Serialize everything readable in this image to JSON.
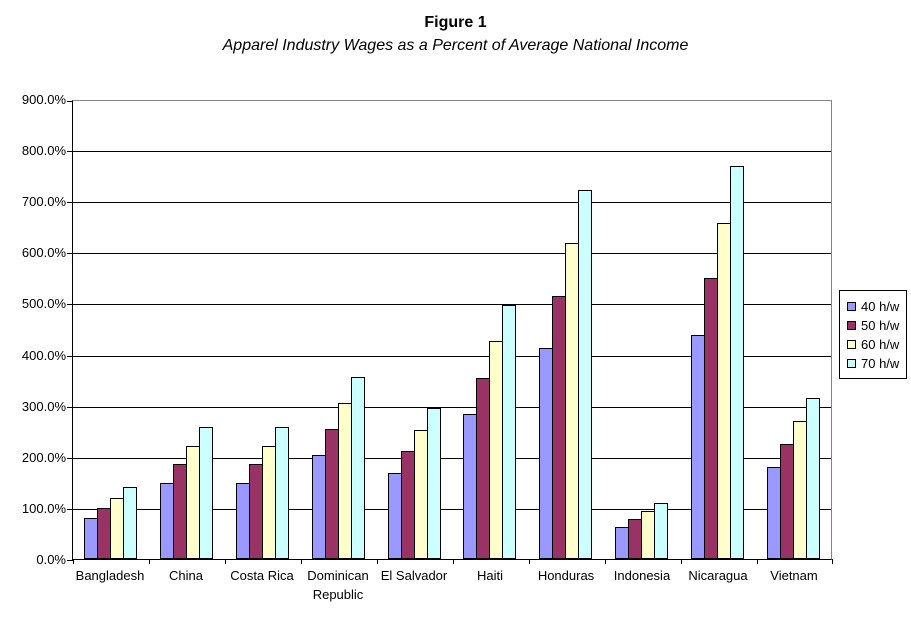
{
  "chart_data": {
    "type": "bar",
    "title": "Figure 1",
    "subtitle": "Apparel Industry Wages as a Percent of Average National Income",
    "categories": [
      "Bangladesh",
      "China",
      "Costa Rica",
      "Dominican Republic",
      "El Salvador",
      "Haiti",
      "Honduras",
      "Indonesia",
      "Nicaragua",
      "Vietnam"
    ],
    "series": [
      {
        "name": "40 h/w",
        "color": "#9999FF",
        "values": [
          80,
          148,
          148,
          203,
          169,
          284,
          412,
          63,
          439,
          180
        ]
      },
      {
        "name": "50 h/w",
        "color": "#993366",
        "values": [
          100,
          185,
          185,
          254,
          211,
          355,
          515,
          79,
          549,
          225
        ]
      },
      {
        "name": "60 h/w",
        "color": "#FFFFCC",
        "values": [
          120,
          222,
          222,
          305,
          253,
          426,
          618,
          94,
          658,
          270
        ]
      },
      {
        "name": "70 h/w",
        "color": "#CCFFFF",
        "values": [
          140,
          259,
          259,
          356,
          296,
          497,
          721,
          110,
          768,
          315
        ]
      }
    ],
    "xlabel": "",
    "ylabel": "",
    "ylim": [
      0,
      900
    ],
    "ytick_step": 100,
    "ytick_labels": [
      "0.0%",
      "100.0%",
      "200.0%",
      "300.0%",
      "400.0%",
      "500.0%",
      "600.0%",
      "700.0%",
      "800.0%",
      "900.0%"
    ],
    "grid": true,
    "legend_position": "right",
    "colors": {
      "gridline": "#000000",
      "plot_border_top_right": "#848484",
      "axis": "#000000",
      "bar_border": "#000000",
      "background": "#FFFFFF"
    }
  }
}
